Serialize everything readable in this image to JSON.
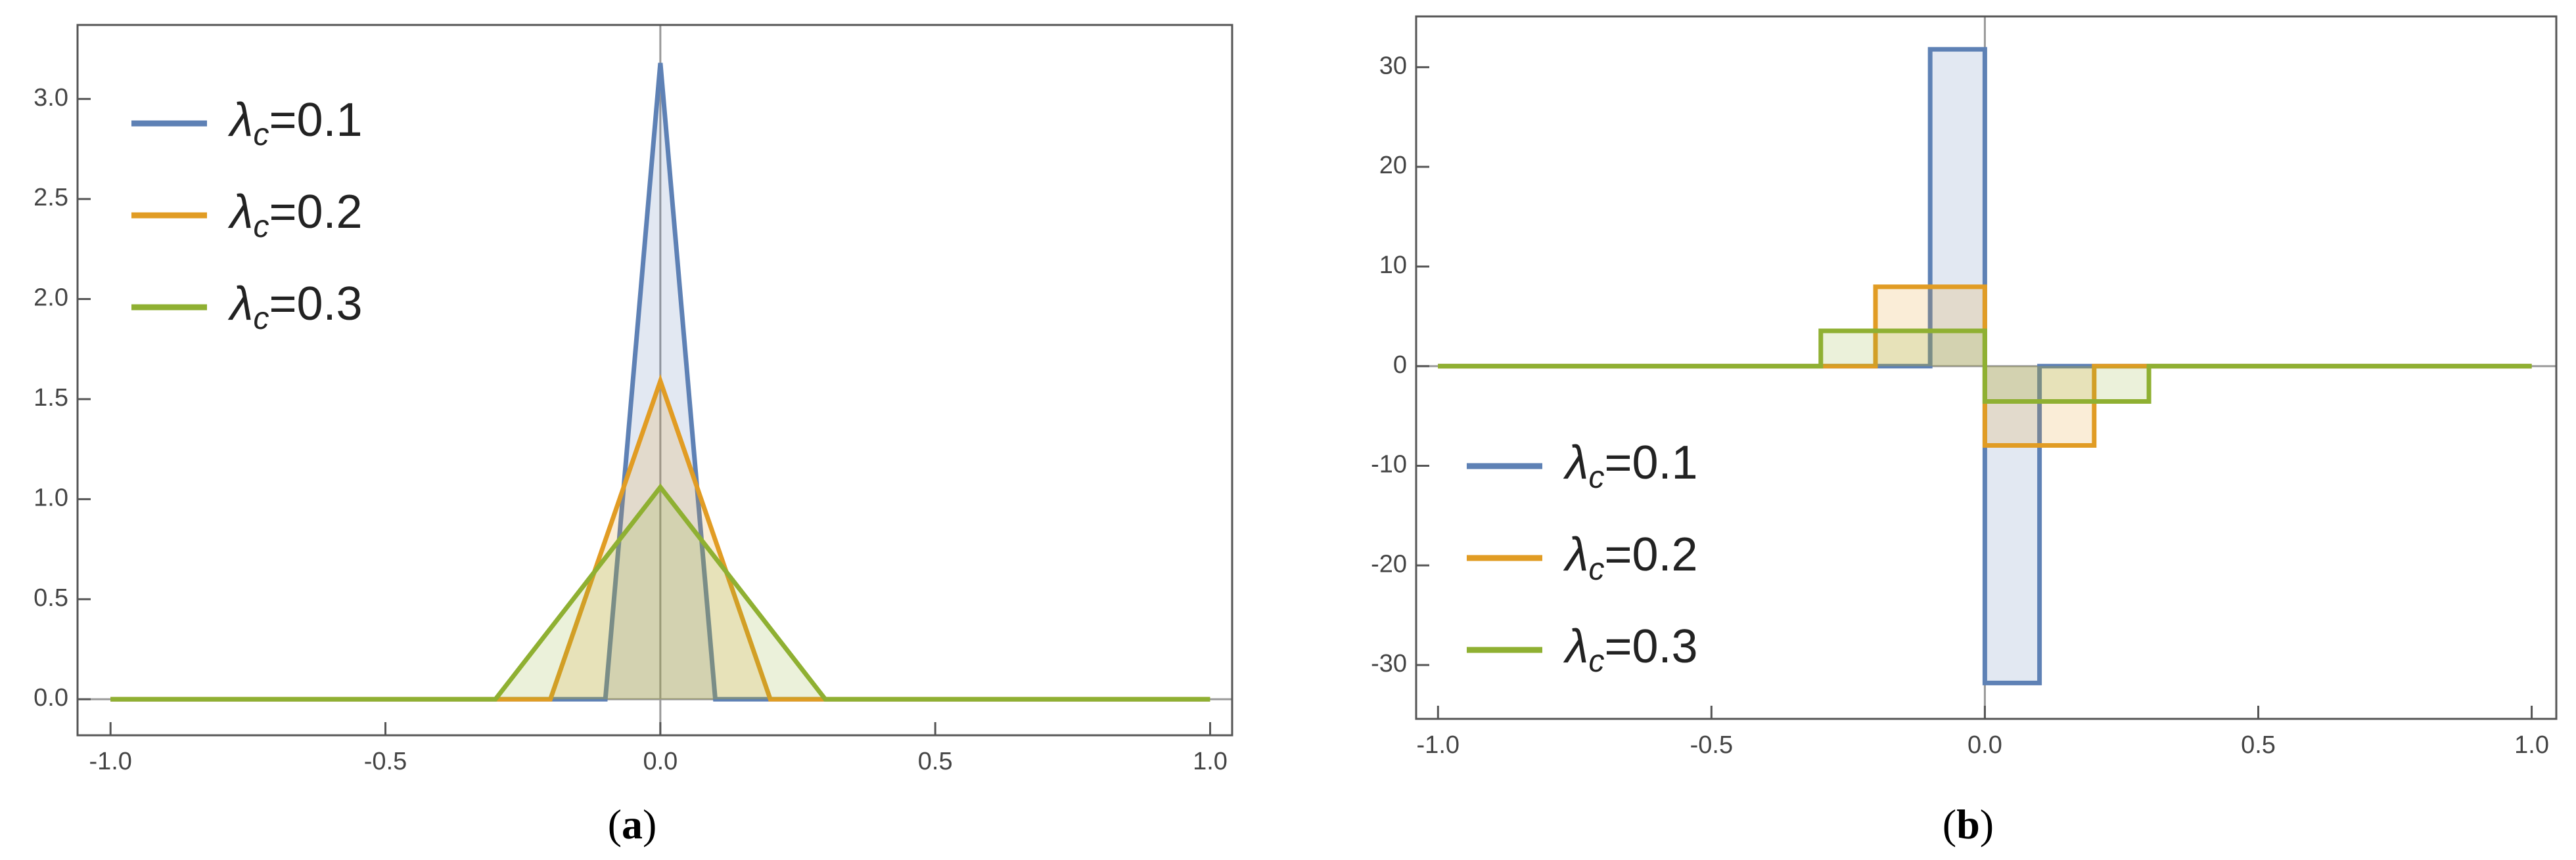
{
  "chart_data": [
    {
      "type": "area",
      "caption": "(a)",
      "legend": "upper left",
      "xlim": [
        -1.06,
        1.04
      ],
      "ylim": [
        -0.18,
        3.37
      ],
      "xticks": [
        {
          "value": -1,
          "label": "-1.0"
        },
        -0.5,
        {
          "value": 0,
          "label": "0.0"
        },
        0.5,
        {
          "value": 1,
          "label": "1.0"
        }
      ],
      "yticks": [
        {
          "value": 0,
          "label": "0.0"
        },
        0.5,
        {
          "value": 1,
          "label": "1.0"
        },
        1.5,
        {
          "value": 2,
          "label": "2.0"
        },
        2.5,
        {
          "value": 3,
          "label": "3.0"
        }
      ],
      "series": [
        {
          "name": "λc=0.1",
          "color": "#5e81b5",
          "x": [
            -1,
            -0.1,
            0,
            0.1,
            1
          ],
          "values": [
            0,
            0,
            3.18,
            0,
            0
          ]
        },
        {
          "name": "λc=0.2",
          "color": "#e19c24",
          "x": [
            -1,
            -0.2,
            0,
            0.2,
            1
          ],
          "values": [
            0,
            0,
            1.59,
            0,
            0
          ]
        },
        {
          "name": "λc=0.3",
          "color": "#8fb032",
          "x": [
            -1,
            -0.3,
            0,
            0.3,
            1
          ],
          "values": [
            0,
            0,
            1.06,
            0,
            0
          ]
        }
      ]
    },
    {
      "type": "area",
      "caption": "(b)",
      "legend": "lower left",
      "xlim": [
        -1.04,
        1.045
      ],
      "ylim": [
        -35.4,
        35.1
      ],
      "xticks": [
        {
          "value": -1,
          "label": "-1.0"
        },
        -0.5,
        {
          "value": 0,
          "label": "0.0"
        },
        0.5,
        {
          "value": 1,
          "label": "1.0"
        }
      ],
      "yticks": [
        -30,
        -20,
        -10,
        0,
        10,
        20,
        30
      ],
      "series": [
        {
          "name": "λc=0.1",
          "color": "#5e81b5",
          "x": [
            -1,
            -0.1,
            -0.1,
            0,
            0,
            0.1,
            0.1,
            1
          ],
          "values": [
            0,
            0,
            31.8,
            31.8,
            -31.8,
            -31.8,
            0,
            0
          ]
        },
        {
          "name": "λc=0.2",
          "color": "#e19c24",
          "x": [
            -1,
            -0.2,
            -0.2,
            0,
            0,
            0.2,
            0.2,
            1
          ],
          "values": [
            0,
            0,
            7.96,
            7.96,
            -7.96,
            -7.96,
            0,
            0
          ]
        },
        {
          "name": "λc=0.3",
          "color": "#8fb032",
          "x": [
            -1,
            -0.3,
            -0.3,
            0,
            0,
            0.3,
            0.3,
            1
          ],
          "values": [
            0,
            0,
            3.54,
            3.54,
            -3.54,
            -3.54,
            0,
            0
          ]
        }
      ]
    }
  ]
}
